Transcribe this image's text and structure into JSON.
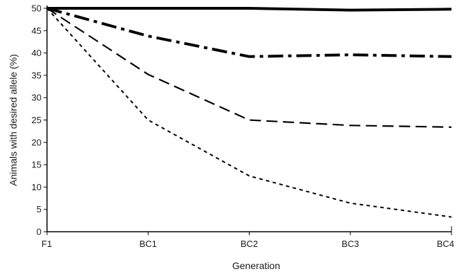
{
  "chart_data": {
    "type": "line",
    "title": "",
    "xlabel": "Generation",
    "ylabel": "Animals with desired allele (%)",
    "categories": [
      "F1",
      "BC1",
      "BC2",
      "BC3",
      "BC4"
    ],
    "ylim": [
      0,
      50
    ],
    "yticks": [
      0,
      5,
      10,
      15,
      20,
      25,
      30,
      35,
      40,
      45,
      50
    ],
    "grid": false,
    "legend": "none",
    "series": [
      {
        "values": [
          50,
          50,
          50,
          49.6,
          49.8
        ],
        "style": "solid",
        "color": "#000000"
      },
      {
        "values": [
          50,
          43.8,
          39.2,
          39.6,
          39.2
        ],
        "style": "dash-dot",
        "color": "#000000"
      },
      {
        "values": [
          50,
          35.2,
          25,
          23.8,
          23.4
        ],
        "style": "long-dash",
        "color": "#000000"
      },
      {
        "values": [
          50,
          25,
          12.5,
          6.4,
          3.3
        ],
        "style": "short-dash",
        "color": "#000000"
      }
    ]
  }
}
